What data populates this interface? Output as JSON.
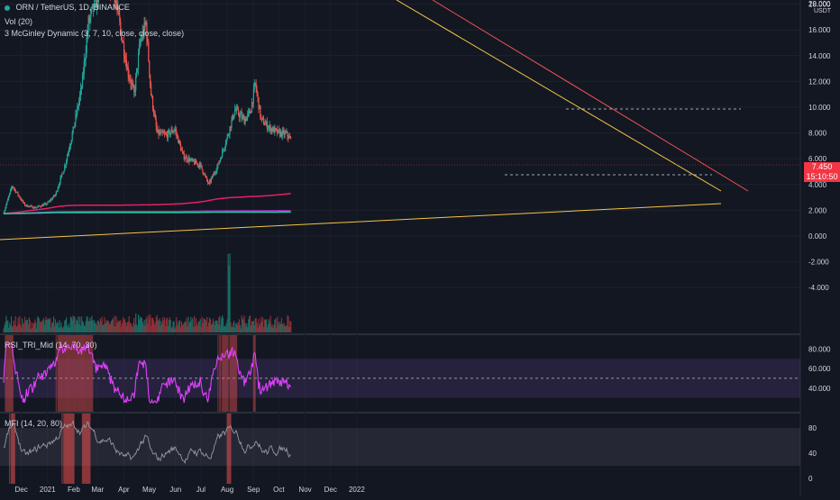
{
  "header": {
    "symbol": "ORN / TetherUS, 1D, BINANCE",
    "vol_indicator": "Vol (20)",
    "mcginley_indicator": "3 McGinley Dynamic (3, 7, 10, close, close, close)",
    "rsi_indicator": "RSI_TRI_Mid (14, 70, 30)",
    "mfi_indicator": "MFI (14, 20, 80)"
  },
  "price_scale": {
    "top_label": "20.000",
    "unit": "USDT",
    "current_price": "7.450",
    "countdown": "15:10:50",
    "ticks": [
      "18.000",
      "16.000",
      "14.000",
      "12.000",
      "10.000",
      "8.000",
      "6.000",
      "4.000",
      "2.000",
      "0.000",
      "-2.000",
      "-4.000"
    ]
  },
  "rsi_scale": {
    "ticks": [
      "80.000",
      "60.000",
      "40.000"
    ]
  },
  "mfi_scale": {
    "ticks": [
      "80",
      "40",
      "0"
    ]
  },
  "time_axis": {
    "labels": [
      "Dec",
      "2021",
      "Feb",
      "Mar",
      "Apr",
      "May",
      "Jun",
      "Jul",
      "Aug",
      "Sep",
      "Oct",
      "Nov",
      "Dec",
      "2022"
    ]
  },
  "colors": {
    "background": "#131722",
    "up": "#26a69a",
    "down": "#ef5350",
    "ma_short": "#e91e63",
    "ma_mid": "#26c6a6",
    "ma_long": "#9c27b0",
    "trendline": "#f5c542",
    "rsi": "#e040fb",
    "mfi": "#9598a1"
  },
  "chart_data": {
    "type": "candlestick",
    "symbol": "ORN / TetherUS",
    "interval": "1D",
    "exchange": "BINANCE",
    "ylim": [
      -5,
      20
    ],
    "approx_close_path": [
      [
        "2020-11-25",
        1.8
      ],
      [
        "2020-12-05",
        3.9
      ],
      [
        "2020-12-20",
        2.4
      ],
      [
        "2021-01-01",
        2.2
      ],
      [
        "2021-01-15",
        2.5
      ],
      [
        "2021-01-25",
        3.2
      ],
      [
        "2021-02-05",
        5.4
      ],
      [
        "2021-02-15",
        8.2
      ],
      [
        "2021-02-25",
        11.5
      ],
      [
        "2021-03-05",
        16.5
      ],
      [
        "2021-03-15",
        18.5
      ],
      [
        "2021-03-25",
        20.0
      ],
      [
        "2021-04-03",
        19.5
      ],
      [
        "2021-04-12",
        16.0
      ],
      [
        "2021-04-20",
        13.0
      ],
      [
        "2021-04-28",
        11.0
      ],
      [
        "2021-05-05",
        15.0
      ],
      [
        "2021-05-12",
        16.5
      ],
      [
        "2021-05-18",
        11.0
      ],
      [
        "2021-05-25",
        8.0
      ],
      [
        "2021-06-05",
        7.8
      ],
      [
        "2021-06-15",
        8.3
      ],
      [
        "2021-06-25",
        6.2
      ],
      [
        "2021-07-05",
        5.8
      ],
      [
        "2021-07-15",
        5.5
      ],
      [
        "2021-07-25",
        4.0
      ],
      [
        "2021-08-05",
        5.5
      ],
      [
        "2021-08-15",
        7.5
      ],
      [
        "2021-08-25",
        9.8
      ],
      [
        "2021-09-05",
        9.0
      ],
      [
        "2021-09-12",
        9.6
      ],
      [
        "2021-09-18",
        11.8
      ],
      [
        "2021-09-25",
        9.0
      ],
      [
        "2021-10-05",
        8.4
      ],
      [
        "2021-10-15",
        8.0
      ],
      [
        "2021-10-25",
        7.9
      ],
      [
        "2021-10-30",
        7.45
      ]
    ],
    "volume_peak": "2021-08-18",
    "rsi_levels": [
      70,
      50,
      30
    ],
    "mfi_levels": [
      80,
      20
    ]
  }
}
